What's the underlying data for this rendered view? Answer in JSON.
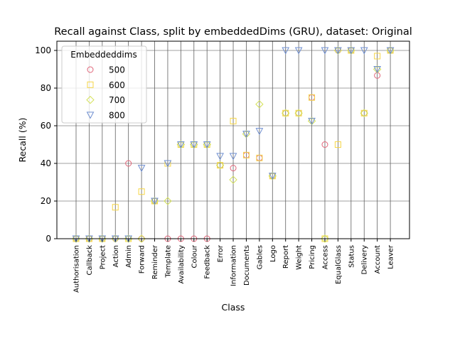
{
  "chart_data": {
    "type": "scatter",
    "title": "Recall against Class, split by embeddedDims (GRU), dataset: Original",
    "xlabel": "Class",
    "ylabel": "Recall (%)",
    "ylim": [
      0,
      105
    ],
    "yticks": [
      0,
      20,
      40,
      60,
      80,
      100
    ],
    "grid": true,
    "legend": {
      "title": "Embeddeddims",
      "position": "top-left"
    },
    "categories": [
      "Authorisation",
      "Callback",
      "Project",
      "Action",
      "Admin",
      "Forward",
      "Reminder",
      "Template",
      "Availability",
      "Colour",
      "Feedback",
      "Error",
      "Information",
      "Documents",
      "Gables",
      "Logo",
      "Report",
      "Weight",
      "Pricing",
      "Access",
      "EqualGlass",
      "Status",
      "Delivery",
      "Account",
      "Leaver"
    ],
    "series": [
      {
        "name": "500",
        "marker": "circle",
        "color": "#e06377",
        "values": [
          0,
          0,
          0,
          0,
          40,
          0,
          20,
          0,
          0,
          0,
          0,
          39,
          37.5,
          44.4,
          42.9,
          33.3,
          66.7,
          66.7,
          75,
          50,
          100,
          100,
          66.7,
          86.7,
          100
        ]
      },
      {
        "name": "600",
        "marker": "square",
        "color": "#f5d547",
        "values": [
          0,
          0,
          0,
          16.7,
          0,
          25,
          20,
          40,
          50,
          50,
          50,
          39,
          62.5,
          44.4,
          42.9,
          33.3,
          66.7,
          66.7,
          75,
          0,
          50,
          100,
          66.7,
          97,
          100
        ]
      },
      {
        "name": "700",
        "marker": "diamond",
        "color": "#d4e157",
        "values": [
          0,
          0,
          0,
          0,
          0,
          0,
          20,
          20,
          50,
          50,
          50,
          39,
          31.3,
          55.6,
          71.4,
          33.3,
          66.7,
          66.7,
          62.5,
          0,
          100,
          100,
          66.7,
          90,
          100
        ]
      },
      {
        "name": "800",
        "marker": "triangle-down",
        "color": "#6f8fd0",
        "values": [
          0,
          0,
          0,
          0,
          0,
          37.5,
          20,
          40,
          50,
          50,
          50,
          43.8,
          43.8,
          55.6,
          57.1,
          33.3,
          100,
          100,
          62.5,
          100,
          100,
          100,
          100,
          90,
          100
        ]
      }
    ]
  }
}
